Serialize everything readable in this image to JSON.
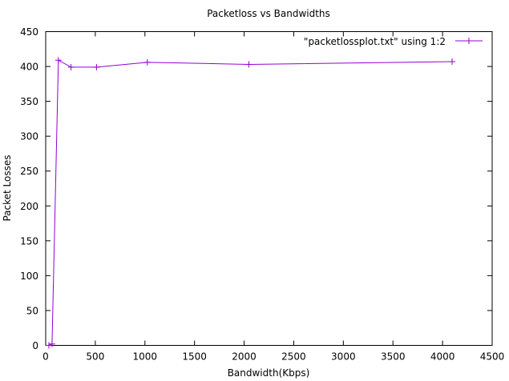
{
  "chart_data": {
    "type": "line",
    "title": "Packetloss vs Bandwidths",
    "xlabel": "Bandwidth(Kbps)",
    "ylabel": "Packet Losses",
    "xlim": [
      0,
      4500
    ],
    "ylim": [
      0,
      450
    ],
    "xticks": [
      0,
      500,
      1000,
      1500,
      2000,
      2500,
      3000,
      3500,
      4000,
      4500
    ],
    "yticks": [
      0,
      50,
      100,
      150,
      200,
      250,
      300,
      350,
      400,
      450
    ],
    "grid": false,
    "legend_position": "top-right",
    "series": [
      {
        "name": "\"packetlossplot.txt\" using 1:2",
        "color": "#9400d3",
        "marker": "plus",
        "x": [
          32,
          64,
          128,
          256,
          512,
          1024,
          2048,
          4096
        ],
        "y": [
          0,
          2,
          409,
          399,
          399,
          406,
          403,
          407
        ]
      }
    ]
  }
}
